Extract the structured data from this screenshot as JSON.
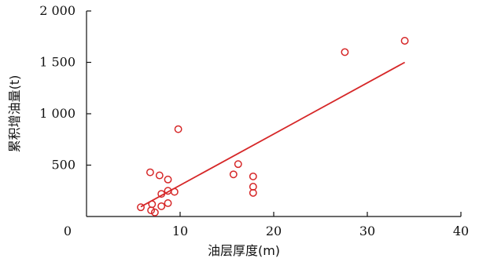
{
  "chart_data": {
    "type": "scatter",
    "xlabel": "油层厚度(m)",
    "ylabel": "累积增油量(t)",
    "xlim": [
      0,
      40
    ],
    "ylim": [
      0,
      2000
    ],
    "xticks": [
      0,
      10,
      20,
      30,
      40
    ],
    "yticks": [
      500,
      1000,
      1500,
      2000
    ],
    "xtick_labels": [
      "0",
      "10",
      "20",
      "30",
      "40"
    ],
    "ytick_labels": [
      "500",
      "1 000",
      "1 500",
      "2 000"
    ],
    "grid": false,
    "colors": {
      "marker": "#d62728",
      "trendline": "#d62728",
      "axis": "#111111"
    },
    "series": [
      {
        "marker": "open-circle",
        "points": [
          {
            "x": 5.8,
            "y": 90
          },
          {
            "x": 6.8,
            "y": 430
          },
          {
            "x": 6.9,
            "y": 60
          },
          {
            "x": 7.0,
            "y": 120
          },
          {
            "x": 7.3,
            "y": 40
          },
          {
            "x": 7.8,
            "y": 400
          },
          {
            "x": 8.0,
            "y": 220
          },
          {
            "x": 8.0,
            "y": 100
          },
          {
            "x": 8.7,
            "y": 360
          },
          {
            "x": 8.7,
            "y": 250
          },
          {
            "x": 8.7,
            "y": 130
          },
          {
            "x": 9.4,
            "y": 240
          },
          {
            "x": 9.8,
            "y": 850
          },
          {
            "x": 15.7,
            "y": 410
          },
          {
            "x": 16.2,
            "y": 510
          },
          {
            "x": 17.8,
            "y": 390
          },
          {
            "x": 17.8,
            "y": 290
          },
          {
            "x": 17.8,
            "y": 230
          },
          {
            "x": 27.6,
            "y": 1600
          },
          {
            "x": 34.0,
            "y": 1710
          }
        ]
      }
    ],
    "trendline": {
      "type": "linear",
      "x": [
        5.8,
        34.0
      ],
      "y": [
        95,
        1500
      ]
    }
  }
}
